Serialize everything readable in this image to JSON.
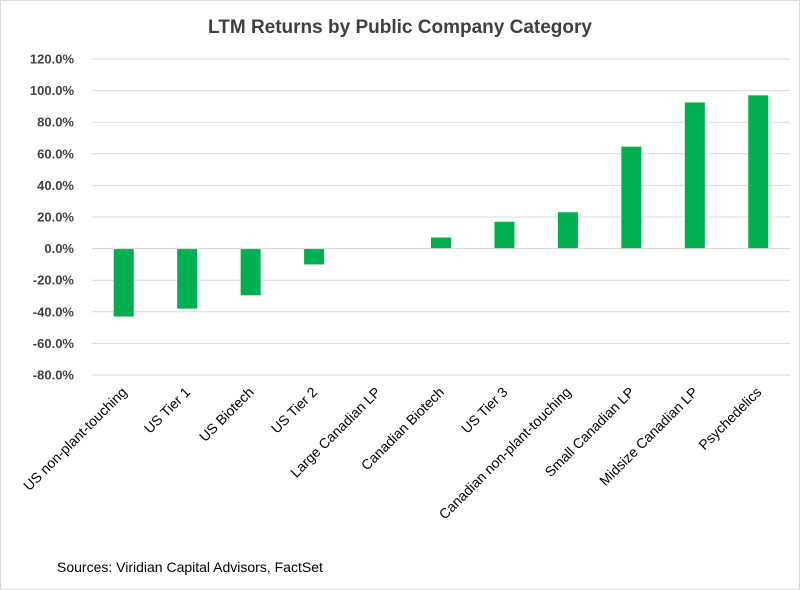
{
  "chart_data": {
    "type": "bar",
    "title": "LTM Returns by Public Company Category",
    "categories": [
      "US non-plant-touching",
      "US Tier 1",
      "US Biotech",
      "US Tier 2",
      "Large Canadian LP",
      "Canadian Biotech",
      "US Tier 3",
      "Canadian non-plant-touching",
      "Small Canadian LP",
      "Midsize Canadian LP",
      "Psychedelics"
    ],
    "values": [
      -43,
      -38,
      -29.5,
      -10,
      0,
      7,
      17,
      23,
      64.5,
      92.5,
      97
    ],
    "ylim": [
      -80,
      120
    ],
    "yticks": [
      "120.0%",
      "100.0%",
      "80.0%",
      "60.0%",
      "40.0%",
      "20.0%",
      "0.0%",
      "-20.0%",
      "-40.0%",
      "-60.0%",
      "-80.0%"
    ],
    "ytick_values": [
      120,
      100,
      80,
      60,
      40,
      20,
      0,
      -20,
      -40,
      -60,
      -80
    ],
    "xlabel": "",
    "ylabel": "",
    "grid": true,
    "bar_color": "#00b050",
    "source": "Sources: Viridian Capital Advisors, FactSet"
  }
}
